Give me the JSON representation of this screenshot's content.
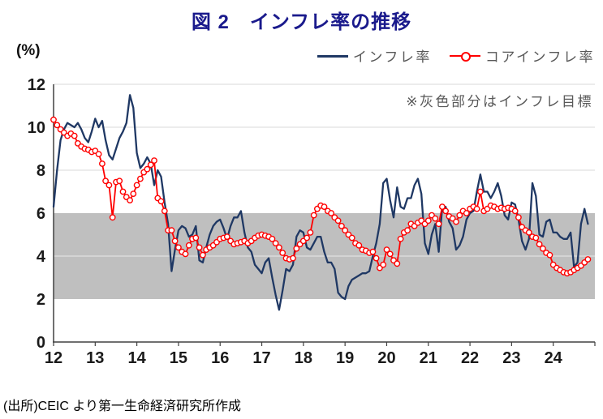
{
  "title": "図 2　インフレ率の推移",
  "y_axis_unit": "(%)",
  "annotation": "※灰色部分はインフレ目標",
  "source": "(出所)CEIC より第一生命経済研究所作成",
  "colors": {
    "title_text": "#1a1a8c",
    "inflation_line": "#1f3864",
    "core_inflation_line": "#ff0000",
    "target_band": "#bfbfbf",
    "gridline": "#d9d9d9",
    "band_gridline": "rgba(255,255,255,0.65)",
    "axis": "#404040",
    "tick_label": "#1a1a1a",
    "legend_text": "#595959"
  },
  "chart_data": {
    "type": "line",
    "title": "図 2　インフレ率の推移",
    "xlabel": "",
    "ylabel": "(%)",
    "ylim": [
      0,
      12
    ],
    "y_ticks": [
      0,
      2,
      4,
      6,
      8,
      10,
      12
    ],
    "x_tick_labels": [
      "12",
      "13",
      "14",
      "15",
      "16",
      "17",
      "18",
      "19",
      "20",
      "21",
      "22",
      "23",
      "24"
    ],
    "x_start_month": "2012-01",
    "x_end_month": "2024-11",
    "months_per_point": 1,
    "grid": true,
    "legend_position": "top-right",
    "target_band": {
      "from": 2,
      "to": 6,
      "label": "※灰色部分はインフレ目標",
      "color": "#bfbfbf"
    },
    "series": [
      {
        "name": "インフレ率",
        "color": "#1f3864",
        "marker": "none",
        "values": [
          6.3,
          8.0,
          9.4,
          9.9,
          10.2,
          10.1,
          10.0,
          10.2,
          9.9,
          9.5,
          9.3,
          9.8,
          10.4,
          10.0,
          10.3,
          9.4,
          8.7,
          8.5,
          9.0,
          9.5,
          9.8,
          10.2,
          11.5,
          10.9,
          8.8,
          8.1,
          8.3,
          8.6,
          8.3,
          7.3,
          8.0,
          7.7,
          6.5,
          5.5,
          3.3,
          4.3,
          5.2,
          5.4,
          5.3,
          4.9,
          5.0,
          5.4,
          3.8,
          3.7,
          4.4,
          5.0,
          5.4,
          5.6,
          5.7,
          5.3,
          4.8,
          5.4,
          5.8,
          5.8,
          6.1,
          5.1,
          4.4,
          4.2,
          3.6,
          3.4,
          3.2,
          3.7,
          3.9,
          3.0,
          2.2,
          1.5,
          2.4,
          3.4,
          3.3,
          3.6,
          4.9,
          5.2,
          5.1,
          4.4,
          4.3,
          4.6,
          4.9,
          4.9,
          4.2,
          3.7,
          3.7,
          3.4,
          2.3,
          2.1,
          2.0,
          2.6,
          2.9,
          3.0,
          3.1,
          3.2,
          3.2,
          3.3,
          4.0,
          4.6,
          5.5,
          7.4,
          7.6,
          6.6,
          5.8,
          7.2,
          6.3,
          6.2,
          6.7,
          6.7,
          7.3,
          7.6,
          6.9,
          4.6,
          4.1,
          5.0,
          5.5,
          4.2,
          6.3,
          6.3,
          5.6,
          5.3,
          4.3,
          4.5,
          4.9,
          5.7,
          6.0,
          6.1,
          7.0,
          7.8,
          7.0,
          7.0,
          6.7,
          7.0,
          7.4,
          6.8,
          5.9,
          5.7,
          6.5,
          6.4,
          5.7,
          4.7,
          4.3,
          4.8,
          7.4,
          6.8,
          5.0,
          4.9,
          5.6,
          5.7,
          5.1,
          5.1,
          4.9,
          4.8,
          4.8,
          5.1,
          3.5,
          3.7,
          5.5,
          6.2,
          5.5
        ]
      },
      {
        "name": "コアインフレ率",
        "color": "#ff0000",
        "marker": "open-circle",
        "values": [
          10.35,
          10.1,
          9.9,
          9.75,
          9.6,
          9.7,
          9.6,
          9.25,
          9.1,
          9.0,
          8.95,
          8.85,
          8.9,
          8.75,
          8.3,
          7.5,
          7.3,
          5.8,
          7.45,
          7.5,
          7.0,
          6.75,
          6.6,
          6.9,
          7.3,
          7.6,
          7.9,
          8.05,
          8.25,
          8.45,
          6.7,
          6.55,
          6.1,
          5.2,
          5.2,
          4.7,
          4.4,
          4.2,
          4.1,
          4.5,
          4.8,
          4.85,
          4.4,
          4.05,
          4.3,
          4.4,
          4.5,
          4.65,
          4.8,
          4.85,
          4.9,
          4.7,
          4.55,
          4.6,
          4.65,
          4.7,
          4.6,
          4.7,
          4.85,
          4.95,
          5.0,
          4.95,
          4.9,
          4.8,
          4.6,
          4.4,
          4.15,
          3.9,
          3.85,
          3.9,
          4.35,
          4.55,
          4.7,
          4.85,
          5.1,
          5.9,
          6.2,
          6.35,
          6.3,
          6.1,
          6.0,
          5.8,
          5.65,
          5.4,
          5.2,
          5.0,
          4.85,
          4.6,
          4.5,
          4.3,
          4.25,
          4.15,
          4.2,
          3.9,
          3.45,
          3.6,
          4.3,
          4.1,
          3.8,
          3.65,
          4.8,
          5.1,
          5.2,
          5.5,
          5.4,
          5.55,
          5.65,
          5.5,
          5.65,
          5.9,
          5.75,
          5.5,
          6.3,
          6.1,
          5.85,
          5.75,
          5.6,
          5.9,
          6.1,
          6.0,
          6.2,
          6.3,
          6.2,
          7.0,
          6.1,
          6.2,
          6.35,
          6.3,
          6.2,
          6.25,
          6.2,
          6.25,
          6.2,
          6.1,
          5.8,
          5.35,
          5.2,
          5.1,
          4.9,
          4.85,
          4.55,
          4.35,
          4.15,
          4.05,
          3.6,
          3.45,
          3.35,
          3.25,
          3.2,
          3.25,
          3.35,
          3.45,
          3.55,
          3.7,
          3.85
        ]
      }
    ]
  }
}
